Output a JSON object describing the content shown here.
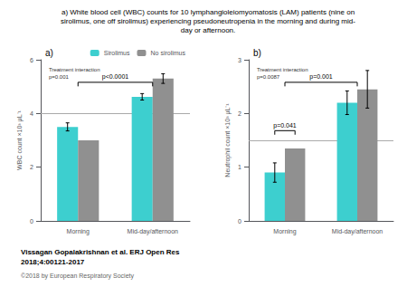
{
  "chart_data": [
    {
      "type": "bar",
      "title": "a) White blood cell (WBC) counts for 10 lymphangioleiomyomatosis (LAM) patients (nine on\nsirolimus, one off sirolimus) experiencing pseudoneutropenia in the morning and during mid-\nday or afternoon.",
      "subtitle": "a)",
      "categories": [
        "Morning",
        "Mid-day/afternoon"
      ],
      "series": [
        {
          "name": "Sirolimus",
          "color": "#3DCFCF",
          "values": [
            3.5,
            4.62
          ],
          "errors": [
            0.15,
            0.12
          ]
        },
        {
          "name": "No sirolimus",
          "color": "#909090",
          "values": [
            3.0,
            5.3
          ],
          "errors": [
            0.0,
            0.18
          ]
        }
      ],
      "ylabel": "WBC count ×10³ μL⁻¹",
      "ylim": [
        0,
        6
      ],
      "yticks": [
        0,
        2,
        4,
        6
      ],
      "reference_line": 4.0,
      "annotations": [
        {
          "text": "Treatment interaction\np=0.001"
        }
      ],
      "brackets": [
        {
          "from": "Morning",
          "to": "Mid-day/afternoon",
          "text": "p<0.0001"
        }
      ],
      "legend": "upper right",
      "grid": false,
      "footer": [
        "Vissagan Gopalakrishnan et al. ERJ Open Res\n2018;4:00121-2017",
        "©2018 by European Respiratory Society"
      ]
    },
    {
      "type": "bar",
      "subtitle": "b)",
      "categories": [
        "Morning",
        "Mid-day/afternoon"
      ],
      "series": [
        {
          "name": "Sirolimus",
          "color": "#3DCFCF",
          "values": [
            0.9,
            2.2
          ],
          "errors": [
            0.18,
            0.22
          ]
        },
        {
          "name": "No sirolimus",
          "color": "#909090",
          "values": [
            1.35,
            2.45
          ],
          "errors": [
            0.0,
            0.35
          ]
        }
      ],
      "ylabel": "Neutrophil count ×10³ μL⁻¹",
      "ylim": [
        0,
        3
      ],
      "yticks": [
        0,
        1,
        2,
        3
      ],
      "reference_line": 1.5,
      "annotations": [
        {
          "text": "Treatment interaction\np=0.0087"
        }
      ],
      "brackets": [
        {
          "from": "Morning",
          "to": "Mid-day/afternoon",
          "text": "p=0.001"
        },
        {
          "category": "Morning",
          "from": "Sirolimus",
          "to": "No sirolimus",
          "text": "p=0.041"
        }
      ],
      "grid": false
    }
  ]
}
